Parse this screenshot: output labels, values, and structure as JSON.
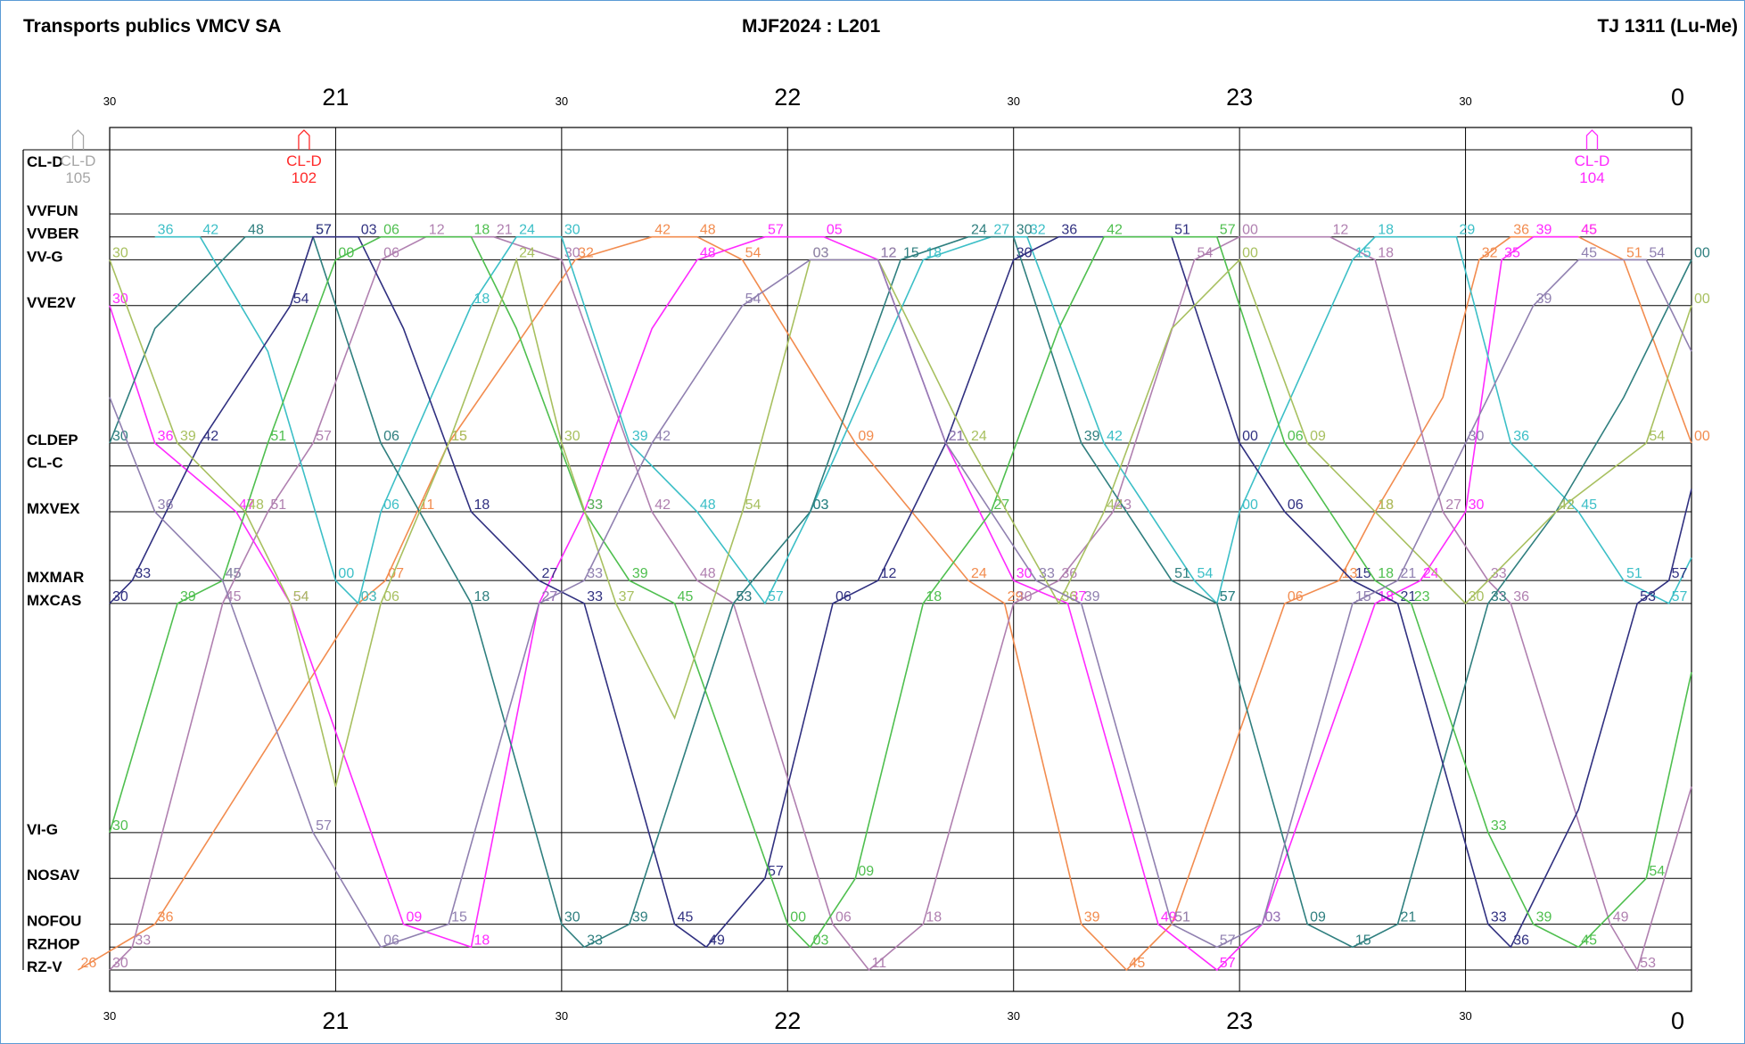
{
  "header": {
    "company": "Transports publics VMCV SA",
    "schedule": "MJF2024 : L201",
    "day_type": "TJ 1311 (Lu-Me)"
  },
  "chart_data": {
    "type": "line",
    "title": "MJF2024 : L201",
    "x_unit": "time of day (hours)",
    "xlim": [
      20.5,
      24.0
    ],
    "hour_ticks": [
      {
        "t": 20.5,
        "label": "30",
        "major": false
      },
      {
        "t": 21.0,
        "label": "21",
        "major": true
      },
      {
        "t": 21.5,
        "label": "30",
        "major": false
      },
      {
        "t": 22.0,
        "label": "22",
        "major": true
      },
      {
        "t": 22.5,
        "label": "30",
        "major": false
      },
      {
        "t": 23.0,
        "label": "23",
        "major": true
      },
      {
        "t": 23.5,
        "label": "30",
        "major": false
      },
      {
        "t": 24.0,
        "label": "0",
        "major": true
      }
    ],
    "stops": [
      {
        "code": "CL-D",
        "pos": 0.0
      },
      {
        "code": "VVFUN",
        "pos": 0.0
      },
      {
        "code": "VVBER",
        "pos": 1.0
      },
      {
        "code": "VV-G",
        "pos": 2.0
      },
      {
        "code": "VVE2V",
        "pos": 4.0
      },
      {
        "code": "CLDEP",
        "pos": 10.0
      },
      {
        "code": "CL-C",
        "pos": 11.0
      },
      {
        "code": "MXVEX",
        "pos": 13.0
      },
      {
        "code": "MXMAR",
        "pos": 16.0
      },
      {
        "code": "MXCAS",
        "pos": 17.0
      },
      {
        "code": "VI-G",
        "pos": 27.0
      },
      {
        "code": "NOSAV",
        "pos": 29.0
      },
      {
        "code": "NOFOU",
        "pos": 31.0
      },
      {
        "code": "RZHOP",
        "pos": 32.0
      },
      {
        "code": "RZ-V",
        "pos": 33.0
      }
    ],
    "depot_labels": [
      {
        "label": "CL-D",
        "vehicle": "105",
        "t": 20.43,
        "color": "#a6a6a6"
      },
      {
        "label": "CL-D",
        "vehicle": "102",
        "t": 20.93,
        "color": "#ff2a2a"
      },
      {
        "label": "CL-D",
        "vehicle": "104",
        "t": 23.78,
        "color": "#ff2aff"
      }
    ],
    "series": [
      {
        "color": "#f28c4f",
        "values": [
          [
            20.43,
            33.0
          ],
          [
            20.6,
            31.0
          ],
          [
            21.05,
            17.0
          ],
          [
            21.11,
            16.0
          ],
          [
            21.18,
            13.0
          ],
          [
            21.25,
            10.0
          ],
          [
            21.53,
            2.0
          ],
          [
            21.7,
            1.0
          ],
          [
            21.8,
            1.0
          ],
          [
            21.9,
            2.0
          ],
          [
            22.15,
            10.0
          ],
          [
            22.4,
            16.0
          ],
          [
            22.48,
            17.0
          ],
          [
            22.65,
            31.0
          ],
          [
            22.75,
            33.0
          ],
          [
            22.85,
            31.0
          ],
          [
            23.1,
            17.0
          ],
          [
            23.22,
            16.0
          ],
          [
            23.3,
            13.0
          ],
          [
            23.45,
            8.0
          ],
          [
            23.53,
            2.0
          ],
          [
            23.6,
            1.0
          ],
          [
            23.75,
            1.0
          ],
          [
            23.85,
            2.0
          ],
          [
            24.0,
            10.0
          ]
        ]
      },
      {
        "color": "#b080b0",
        "values": [
          [
            20.5,
            33.0
          ],
          [
            20.55,
            32.0
          ],
          [
            20.75,
            17.0
          ],
          [
            20.85,
            13.0
          ],
          [
            20.95,
            10.0
          ],
          [
            21.1,
            2.0
          ],
          [
            21.2,
            1.0
          ],
          [
            21.35,
            1.0
          ],
          [
            21.5,
            2.0
          ],
          [
            21.7,
            13.0
          ],
          [
            21.8,
            16.0
          ],
          [
            21.88,
            17.0
          ],
          [
            22.1,
            31.0
          ],
          [
            22.18,
            33.0
          ],
          [
            22.3,
            31.0
          ],
          [
            22.5,
            17.0
          ],
          [
            22.6,
            16.0
          ],
          [
            22.72,
            13.0
          ],
          [
            22.9,
            2.0
          ],
          [
            23.0,
            1.0
          ],
          [
            23.2,
            1.0
          ],
          [
            23.3,
            2.0
          ],
          [
            23.45,
            13.0
          ],
          [
            23.55,
            16.0
          ],
          [
            23.6,
            17.0
          ],
          [
            23.82,
            31.0
          ],
          [
            23.88,
            33.0
          ],
          [
            24.0,
            25.0
          ]
        ]
      },
      {
        "color": "#ff2aff",
        "values": [
          [
            20.5,
            4.0
          ],
          [
            20.6,
            10.0
          ],
          [
            20.78,
            13.0
          ],
          [
            20.9,
            17.0
          ],
          [
            21.15,
            31.0
          ],
          [
            21.3,
            32.0
          ],
          [
            21.45,
            17.0
          ],
          [
            21.55,
            13.0
          ],
          [
            21.7,
            5.0
          ],
          [
            21.8,
            2.0
          ],
          [
            21.95,
            1.0
          ],
          [
            22.08,
            1.0
          ],
          [
            22.2,
            2.0
          ],
          [
            22.35,
            10.0
          ],
          [
            22.5,
            16.0
          ],
          [
            22.62,
            17.0
          ],
          [
            22.82,
            31.0
          ],
          [
            22.95,
            33.0
          ],
          [
            23.05,
            31.0
          ],
          [
            23.3,
            17.0
          ],
          [
            23.4,
            16.0
          ],
          [
            23.5,
            13.0
          ],
          [
            23.58,
            2.0
          ],
          [
            23.65,
            1.0
          ],
          [
            23.75,
            1.0
          ]
        ]
      },
      {
        "color": "#3cbfc7",
        "values": [
          [
            20.6,
            1.0
          ],
          [
            20.7,
            1.0
          ],
          [
            20.85,
            6.0
          ],
          [
            21.0,
            16.0
          ],
          [
            21.05,
            17.0
          ],
          [
            21.1,
            13.0
          ],
          [
            21.3,
            4.0
          ],
          [
            21.4,
            1.0
          ],
          [
            21.5,
            1.0
          ],
          [
            21.65,
            10.0
          ],
          [
            21.8,
            13.0
          ],
          [
            21.95,
            17.0
          ],
          [
            22.05,
            13.0
          ],
          [
            22.3,
            2.0
          ],
          [
            22.45,
            1.0
          ],
          [
            22.53,
            1.0
          ],
          [
            22.7,
            10.0
          ],
          [
            22.9,
            16.0
          ],
          [
            22.95,
            17.0
          ],
          [
            23.0,
            13.0
          ],
          [
            23.25,
            2.0
          ],
          [
            23.3,
            1.0
          ],
          [
            23.48,
            1.0
          ],
          [
            23.6,
            10.0
          ],
          [
            23.75,
            13.0
          ],
          [
            23.85,
            16.0
          ],
          [
            23.95,
            17.0
          ],
          [
            24.0,
            15.0
          ]
        ]
      },
      {
        "color": "#2f7f7f",
        "values": [
          [
            20.5,
            10.0
          ],
          [
            20.6,
            5.0
          ],
          [
            20.8,
            1.0
          ],
          [
            20.95,
            1.0
          ],
          [
            21.1,
            10.0
          ],
          [
            21.3,
            17.0
          ],
          [
            21.5,
            31.0
          ],
          [
            21.55,
            32.0
          ],
          [
            21.65,
            31.0
          ],
          [
            21.88,
            17.0
          ],
          [
            22.05,
            13.0
          ],
          [
            22.25,
            2.0
          ],
          [
            22.4,
            1.0
          ],
          [
            22.5,
            1.0
          ],
          [
            22.65,
            10.0
          ],
          [
            22.85,
            16.0
          ],
          [
            22.95,
            17.0
          ],
          [
            23.15,
            31.0
          ],
          [
            23.25,
            32.0
          ],
          [
            23.35,
            31.0
          ],
          [
            23.55,
            17.0
          ],
          [
            23.7,
            13.0
          ],
          [
            23.85,
            8.0
          ],
          [
            24.0,
            2.0
          ]
        ]
      },
      {
        "color": "#303080",
        "values": [
          [
            20.5,
            17.0
          ],
          [
            20.55,
            16.0
          ],
          [
            20.7,
            10.0
          ],
          [
            20.9,
            4.0
          ],
          [
            20.95,
            1.0
          ],
          [
            21.05,
            1.0
          ],
          [
            21.15,
            5.0
          ],
          [
            21.3,
            13.0
          ],
          [
            21.45,
            16.0
          ],
          [
            21.55,
            17.0
          ],
          [
            21.75,
            31.0
          ],
          [
            21.82,
            32.0
          ],
          [
            21.95,
            29.0
          ],
          [
            22.1,
            17.0
          ],
          [
            22.2,
            16.0
          ],
          [
            22.35,
            10.0
          ],
          [
            22.5,
            2.0
          ],
          [
            22.6,
            1.0
          ],
          [
            22.85,
            1.0
          ],
          [
            23.0,
            10.0
          ],
          [
            23.1,
            13.0
          ],
          [
            23.25,
            16.0
          ],
          [
            23.35,
            17.0
          ],
          [
            23.55,
            31.0
          ],
          [
            23.6,
            32.0
          ],
          [
            23.75,
            26.0
          ],
          [
            23.88,
            17.0
          ],
          [
            23.95,
            16.0
          ],
          [
            24.0,
            12.0
          ]
        ]
      },
      {
        "color": "#4fbf4f",
        "values": [
          [
            20.5,
            27.0
          ],
          [
            20.65,
            17.0
          ],
          [
            20.75,
            16.0
          ],
          [
            20.85,
            10.0
          ],
          [
            21.0,
            2.0
          ],
          [
            21.1,
            1.0
          ],
          [
            21.3,
            1.0
          ],
          [
            21.4,
            5.0
          ],
          [
            21.55,
            13.0
          ],
          [
            21.65,
            16.0
          ],
          [
            21.75,
            17.0
          ],
          [
            22.0,
            31.0
          ],
          [
            22.05,
            32.0
          ],
          [
            22.15,
            29.0
          ],
          [
            22.3,
            17.0
          ],
          [
            22.45,
            13.0
          ],
          [
            22.6,
            5.0
          ],
          [
            22.7,
            1.0
          ],
          [
            22.95,
            1.0
          ],
          [
            23.1,
            10.0
          ],
          [
            23.3,
            16.0
          ],
          [
            23.38,
            17.0
          ],
          [
            23.55,
            27.0
          ],
          [
            23.65,
            31.0
          ],
          [
            23.75,
            32.0
          ],
          [
            23.9,
            29.0
          ],
          [
            24.0,
            20.0
          ]
        ]
      },
      {
        "color": "#a8c060",
        "values": [
          [
            20.5,
            2.0
          ],
          [
            20.65,
            10.0
          ],
          [
            20.8,
            13.0
          ],
          [
            20.9,
            17.0
          ],
          [
            21.0,
            25.0
          ],
          [
            21.1,
            17.0
          ],
          [
            21.25,
            10.0
          ],
          [
            21.4,
            2.0
          ],
          [
            21.5,
            10.0
          ],
          [
            21.62,
            17.0
          ],
          [
            21.75,
            22.0
          ],
          [
            21.9,
            13.0
          ],
          [
            22.05,
            2.0
          ],
          [
            22.2,
            2.0
          ],
          [
            22.4,
            10.0
          ],
          [
            22.6,
            17.0
          ],
          [
            22.7,
            13.0
          ],
          [
            22.85,
            5.0
          ],
          [
            23.0,
            2.0
          ],
          [
            23.15,
            10.0
          ],
          [
            23.3,
            13.0
          ],
          [
            23.5,
            17.0
          ],
          [
            23.7,
            13.0
          ],
          [
            23.9,
            10.0
          ],
          [
            24.0,
            4.0
          ]
        ]
      },
      {
        "color": "#9080b0",
        "values": [
          [
            20.5,
            8.0
          ],
          [
            20.6,
            13.0
          ],
          [
            20.75,
            16.0
          ],
          [
            20.95,
            27.0
          ],
          [
            21.1,
            32.0
          ],
          [
            21.25,
            31.0
          ],
          [
            21.45,
            17.0
          ],
          [
            21.55,
            16.0
          ],
          [
            21.7,
            10.0
          ],
          [
            21.9,
            4.0
          ],
          [
            22.05,
            2.0
          ],
          [
            22.2,
            2.0
          ],
          [
            22.35,
            10.0
          ],
          [
            22.55,
            16.0
          ],
          [
            22.65,
            17.0
          ],
          [
            22.85,
            31.0
          ],
          [
            22.95,
            32.0
          ],
          [
            23.05,
            31.0
          ],
          [
            23.25,
            17.0
          ],
          [
            23.35,
            16.0
          ],
          [
            23.5,
            10.0
          ],
          [
            23.65,
            4.0
          ],
          [
            23.75,
            2.0
          ],
          [
            23.9,
            2.0
          ],
          [
            24.0,
            6.0
          ]
        ]
      }
    ]
  }
}
